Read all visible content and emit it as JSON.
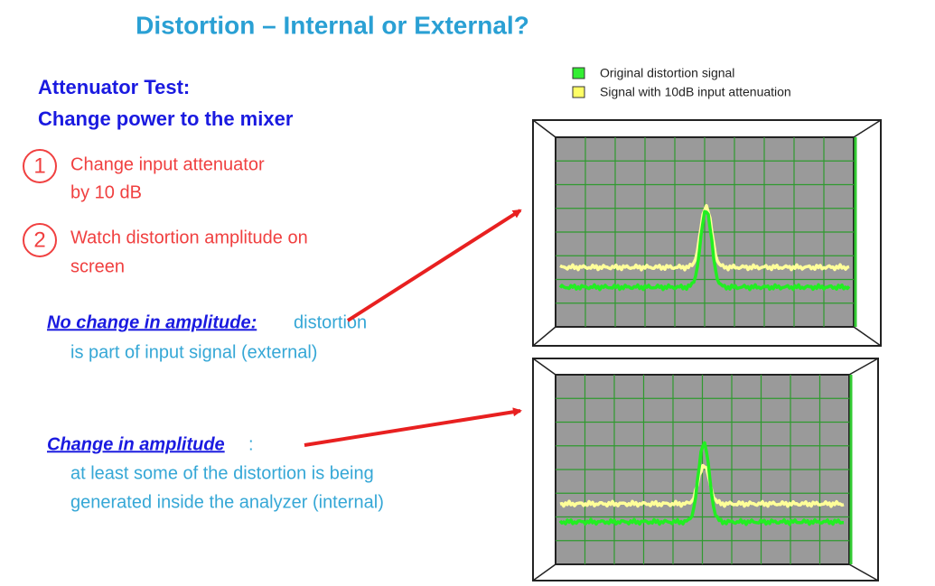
{
  "title": "Distortion – Internal or External?",
  "heading": [
    "Attenuator Test:",
    "Change power to the mixer"
  ],
  "steps": [
    {
      "number": "1",
      "lines": [
        "Change input attenuator",
        "by 10 dB"
      ]
    },
    {
      "number": "2",
      "lines": [
        "Watch distortion amplitude on",
        "screen"
      ]
    }
  ],
  "conclusions": [
    {
      "label": "No change in amplitude:",
      "lines": [
        "distortion",
        "is part of input signal (external)"
      ]
    },
    {
      "label": "Change in amplitude",
      "suffix": ":",
      "lines": [
        "at least some of the distortion is being",
        "generated inside the analyzer (internal)"
      ]
    }
  ],
  "legend": [
    "Original distortion signal",
    "Signal with 10dB input attenuation"
  ]
}
